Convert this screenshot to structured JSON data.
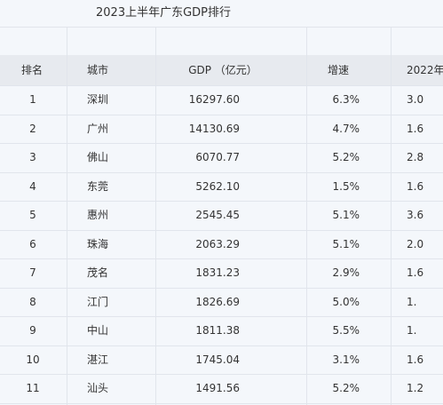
{
  "title": "2023上半年广东GDP排行",
  "table": {
    "header": [
      "排名",
      "城市",
      "GDP （亿元）",
      "增速",
      "2022年"
    ],
    "rows": [
      [
        "1",
        "深圳",
        "16297.60",
        "6.3%",
        "3.0"
      ],
      [
        "2",
        "广州",
        "14130.69",
        "4.7%",
        "1.6"
      ],
      [
        "3",
        "佛山",
        "6070.77",
        "5.2%",
        "2.8"
      ],
      [
        "4",
        "东莞",
        "5262.10",
        "1.5%",
        "1.6"
      ],
      [
        "5",
        "惠州",
        "2545.45",
        "5.1%",
        "3.6"
      ],
      [
        "6",
        "珠海",
        "2063.29",
        "5.1%",
        "2.0"
      ],
      [
        "7",
        "茂名",
        "1831.23",
        "2.9%",
        "1.6"
      ],
      [
        "8",
        "江门",
        "1826.69",
        "5.0%",
        "1."
      ],
      [
        "9",
        "中山",
        "1811.38",
        "5.5%",
        "1."
      ],
      [
        "10",
        "湛江",
        "1745.04",
        "3.1%",
        "1.6"
      ],
      [
        "11",
        "汕头",
        "1491.56",
        "5.2%",
        "1.2"
      ]
    ]
  }
}
